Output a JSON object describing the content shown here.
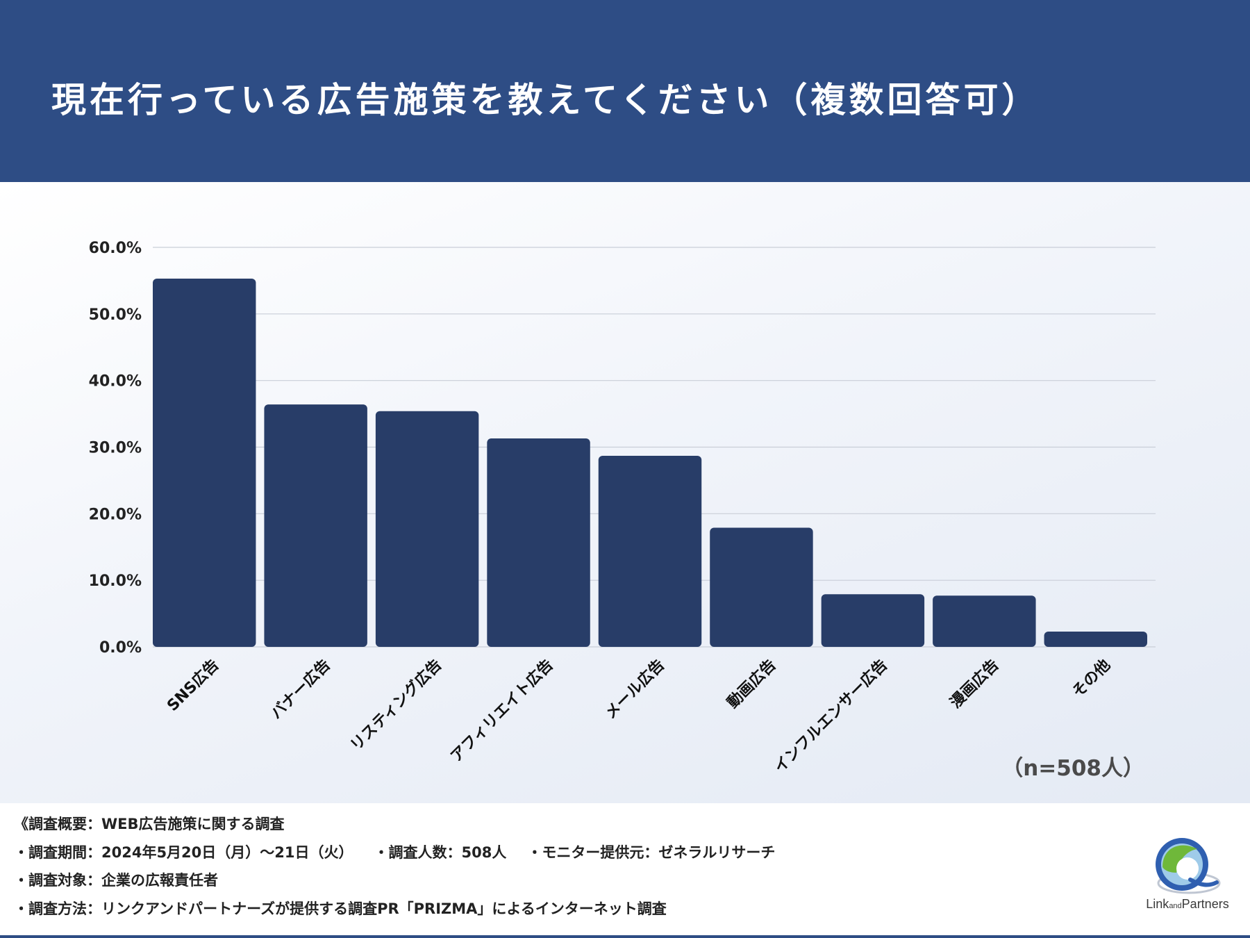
{
  "header": {
    "title": "現在行っている広告施策を教えてください（複数回答可）"
  },
  "colors": {
    "header_bg": "#2e4d85",
    "bar": "#283d68",
    "grid": "#c9ced8"
  },
  "chart_data": {
    "type": "bar",
    "title": "現在行っている広告施策を教えてください（複数回答可）",
    "categories": [
      "SNS広告",
      "バナー広告",
      "リスティング広告",
      "アフィリエイト広告",
      "メール広告",
      "動画広告",
      "インフルエンサー広告",
      "漫画広告",
      "その他"
    ],
    "values": [
      55.3,
      36.4,
      35.4,
      31.3,
      28.7,
      17.9,
      7.9,
      7.7,
      2.3
    ],
    "ylim": [
      0,
      60
    ],
    "yticks": [
      "0.0%",
      "10.0%",
      "20.0%",
      "30.0%",
      "40.0%",
      "50.0%",
      "60.0%"
    ],
    "grid": true,
    "note": "（n=508人）"
  },
  "survey": {
    "heading": "《調査概要：WEB広告施策に関する調査",
    "period": "・調査期間：2024年5月20日（月）〜21日（火）",
    "count": "・調査人数：508人",
    "provider": "・モニター提供元：ゼネラルリサーチ",
    "target": "・調査対象：企業の広報責任者",
    "method": "・調査方法：リンクアンドパートナーズが提供する調査PR「PRIZMA」によるインターネット調査"
  },
  "logo": {
    "word1": "Link",
    "word2": "and",
    "word3": "Partners",
    "icon": "link-and-partners-logo-icon"
  }
}
